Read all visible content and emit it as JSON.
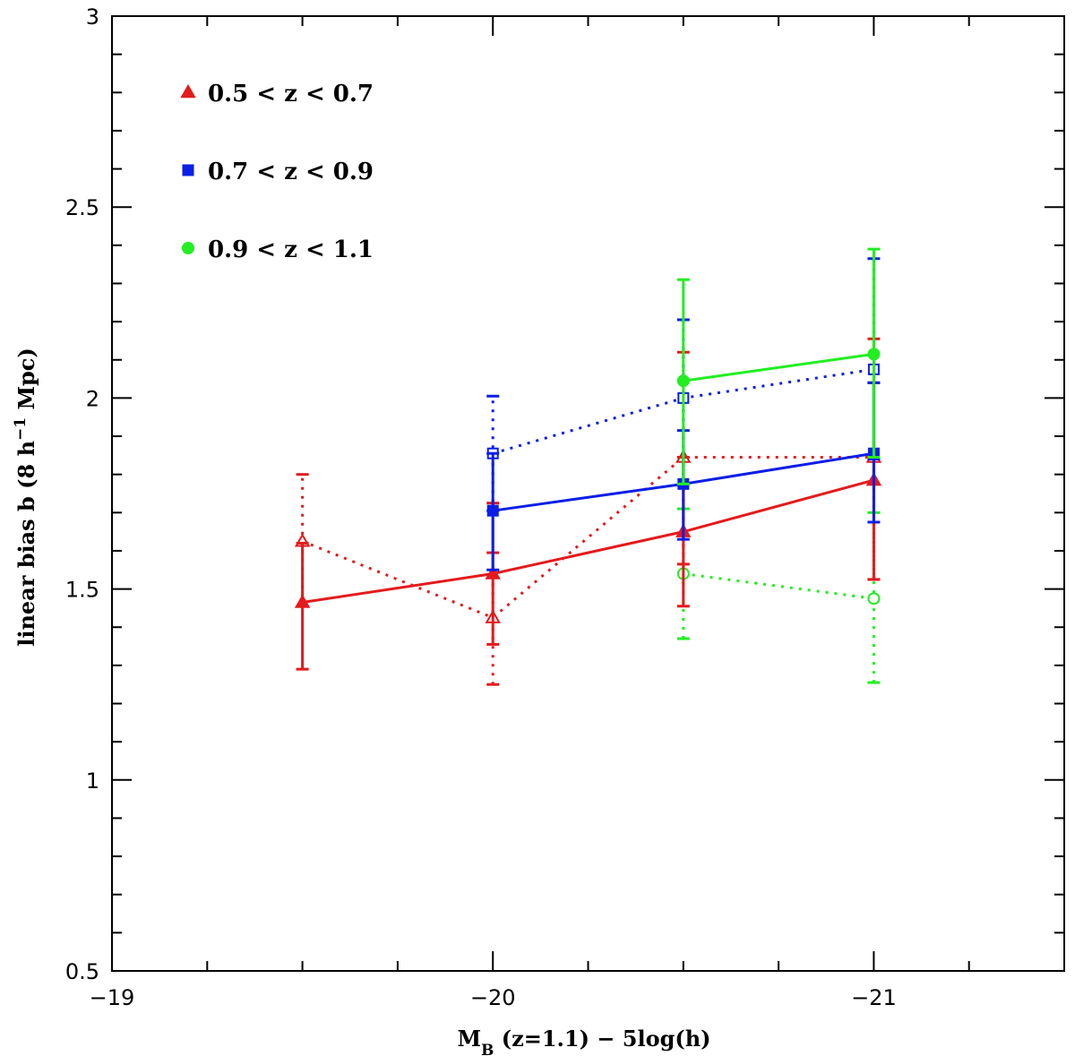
{
  "chart_data": {
    "type": "line",
    "title": "",
    "xlabel": {
      "main": "M",
      "sub": "B",
      "rest": " (z=1.1) − 5log(h)"
    },
    "ylabel": {
      "main": "linear bias b (8 h",
      "sup": "−1",
      "rest": " Mpc)"
    },
    "xlim": [
      -19,
      -21.5
    ],
    "ylim": [
      0.5,
      3
    ],
    "x_ticks": [
      -19,
      -20,
      -21
    ],
    "x_tick_labels": [
      "−19",
      "−20",
      "−21"
    ],
    "y_ticks": [
      0.5,
      1,
      1.5,
      2,
      2.5,
      3
    ],
    "y_tick_labels": [
      "0.5",
      "1",
      "1.5",
      "2",
      "2.5",
      "3"
    ],
    "grid": false,
    "legend_position": "top-left",
    "series": [
      {
        "name": "0.5 < z < 0.7",
        "color": "#e41a1c",
        "marker": "triangle-filled",
        "style": "solid",
        "points": [
          {
            "x": -19.5,
            "y": 1.465,
            "yerr_low": 1.29,
            "yerr_high": 1.62
          },
          {
            "x": -20.0,
            "y": 1.54,
            "yerr_low": 1.355,
            "yerr_high": 1.725
          },
          {
            "x": -20.5,
            "y": 1.65,
            "yerr_low": 1.455,
            "yerr_high": 1.845
          },
          {
            "x": -21.0,
            "y": 1.785,
            "yerr_low": 1.525,
            "yerr_high": 2.04
          }
        ]
      },
      {
        "name": "0.5 < z < 0.7 (open)",
        "color": "#e41a1c",
        "marker": "triangle-open",
        "style": "dotted",
        "points": [
          {
            "x": -19.5,
            "y": 1.625,
            "yerr_low": 1.455,
            "yerr_high": 1.8
          },
          {
            "x": -20.0,
            "y": 1.425,
            "yerr_low": 1.25,
            "yerr_high": 1.595
          },
          {
            "x": -20.5,
            "y": 1.845,
            "yerr_low": 1.565,
            "yerr_high": 2.12
          },
          {
            "x": -21.0,
            "y": 1.845,
            "yerr_low": 1.525,
            "yerr_high": 2.155
          }
        ]
      },
      {
        "name": "0.7 < z < 0.9",
        "color": "#0a1ee6",
        "marker": "square-filled",
        "style": "solid",
        "points": [
          {
            "x": -20.0,
            "y": 1.705,
            "yerr_low": 1.55,
            "yerr_high": 1.855
          },
          {
            "x": -20.5,
            "y": 1.775,
            "yerr_low": 1.63,
            "yerr_high": 1.915
          },
          {
            "x": -21.0,
            "y": 1.855,
            "yerr_low": 1.675,
            "yerr_high": 2.04
          }
        ]
      },
      {
        "name": "0.7 < z < 0.9 (open)",
        "color": "#0a1ee6",
        "marker": "square-open",
        "style": "dotted",
        "points": [
          {
            "x": -20.0,
            "y": 1.855,
            "yerr_low": 1.705,
            "yerr_high": 2.005
          },
          {
            "x": -20.5,
            "y": 2.0,
            "yerr_low": 1.775,
            "yerr_high": 2.205
          },
          {
            "x": -21.0,
            "y": 2.075,
            "yerr_low": 1.84,
            "yerr_high": 2.365
          }
        ]
      },
      {
        "name": "0.9 < z < 1.1",
        "color": "#22ee22",
        "marker": "circle-filled",
        "style": "solid",
        "points": [
          {
            "x": -20.5,
            "y": 2.045,
            "yerr_low": 1.775,
            "yerr_high": 2.31
          },
          {
            "x": -21.0,
            "y": 2.115,
            "yerr_low": 1.845,
            "yerr_high": 2.39
          }
        ]
      },
      {
        "name": "0.9 < z < 1.1 (open)",
        "color": "#22ee22",
        "marker": "circle-open",
        "style": "dotted",
        "points": [
          {
            "x": -20.5,
            "y": 1.54,
            "yerr_low": 1.37,
            "yerr_high": 1.71
          },
          {
            "x": -21.0,
            "y": 1.475,
            "yerr_low": 1.255,
            "yerr_high": 1.7
          }
        ]
      }
    ],
    "legend": [
      {
        "label": "0.5 < z < 0.7",
        "color": "#e41a1c",
        "marker": "triangle-filled"
      },
      {
        "label": "0.7 < z < 0.9",
        "color": "#0a1ee6",
        "marker": "square-filled"
      },
      {
        "label": "0.9 < z < 1.1",
        "color": "#22ee22",
        "marker": "circle-filled"
      }
    ]
  }
}
